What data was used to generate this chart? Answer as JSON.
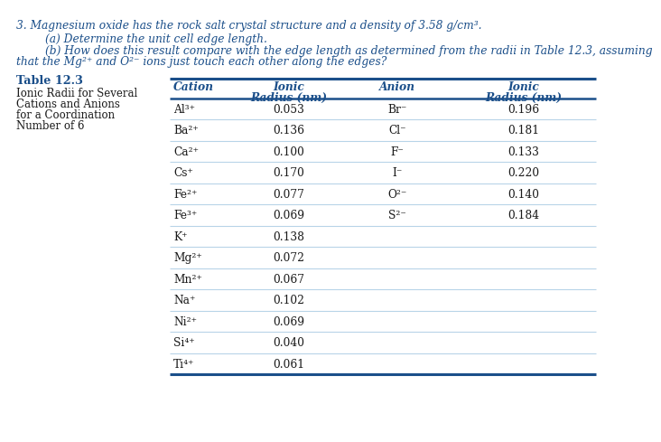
{
  "title_text": "3. Magnesium oxide has the rock salt crystal structure and a density of 3.58 g/cm³.",
  "part_a": "(a) Determine the unit cell edge length.",
  "part_b1": "(b) How does this result compare with the edge length as determined from the radii in Table 12.3, assuming",
  "part_b2": "that the Mg²⁺ and O²⁻ ions just touch each other along the edges?",
  "table_title": "Table 12.3",
  "table_sub1": "Ionic Radii for Several",
  "table_sub2": "Cations and Anions",
  "table_sub3": "for a Coordination",
  "table_sub4": "Number of 6",
  "cations": [
    "Al³⁺",
    "Ba²⁺",
    "Ca²⁺",
    "Cs⁺",
    "Fe²⁺",
    "Fe³⁺",
    "K⁺",
    "Mg²⁺",
    "Mn²⁺",
    "Na⁺",
    "Ni²⁺",
    "Si⁴⁺",
    "Ti⁴⁺"
  ],
  "cation_radii": [
    "0.053",
    "0.136",
    "0.100",
    "0.170",
    "0.077",
    "0.069",
    "0.138",
    "0.072",
    "0.067",
    "0.102",
    "0.069",
    "0.040",
    "0.061"
  ],
  "anions": [
    "Br⁻",
    "Cl⁻",
    "F⁻",
    "I⁻",
    "O²⁻",
    "S²⁻",
    "",
    "",
    "",
    "",
    "",
    "",
    ""
  ],
  "anion_radii": [
    "0.196",
    "0.181",
    "0.133",
    "0.220",
    "0.140",
    "0.184",
    "",
    "",
    "",
    "",
    "",
    "",
    ""
  ],
  "blue": "#1B4F8A",
  "light_blue": "#B8D4E8",
  "black": "#1a1a1a",
  "bg": "#FFFFFF"
}
